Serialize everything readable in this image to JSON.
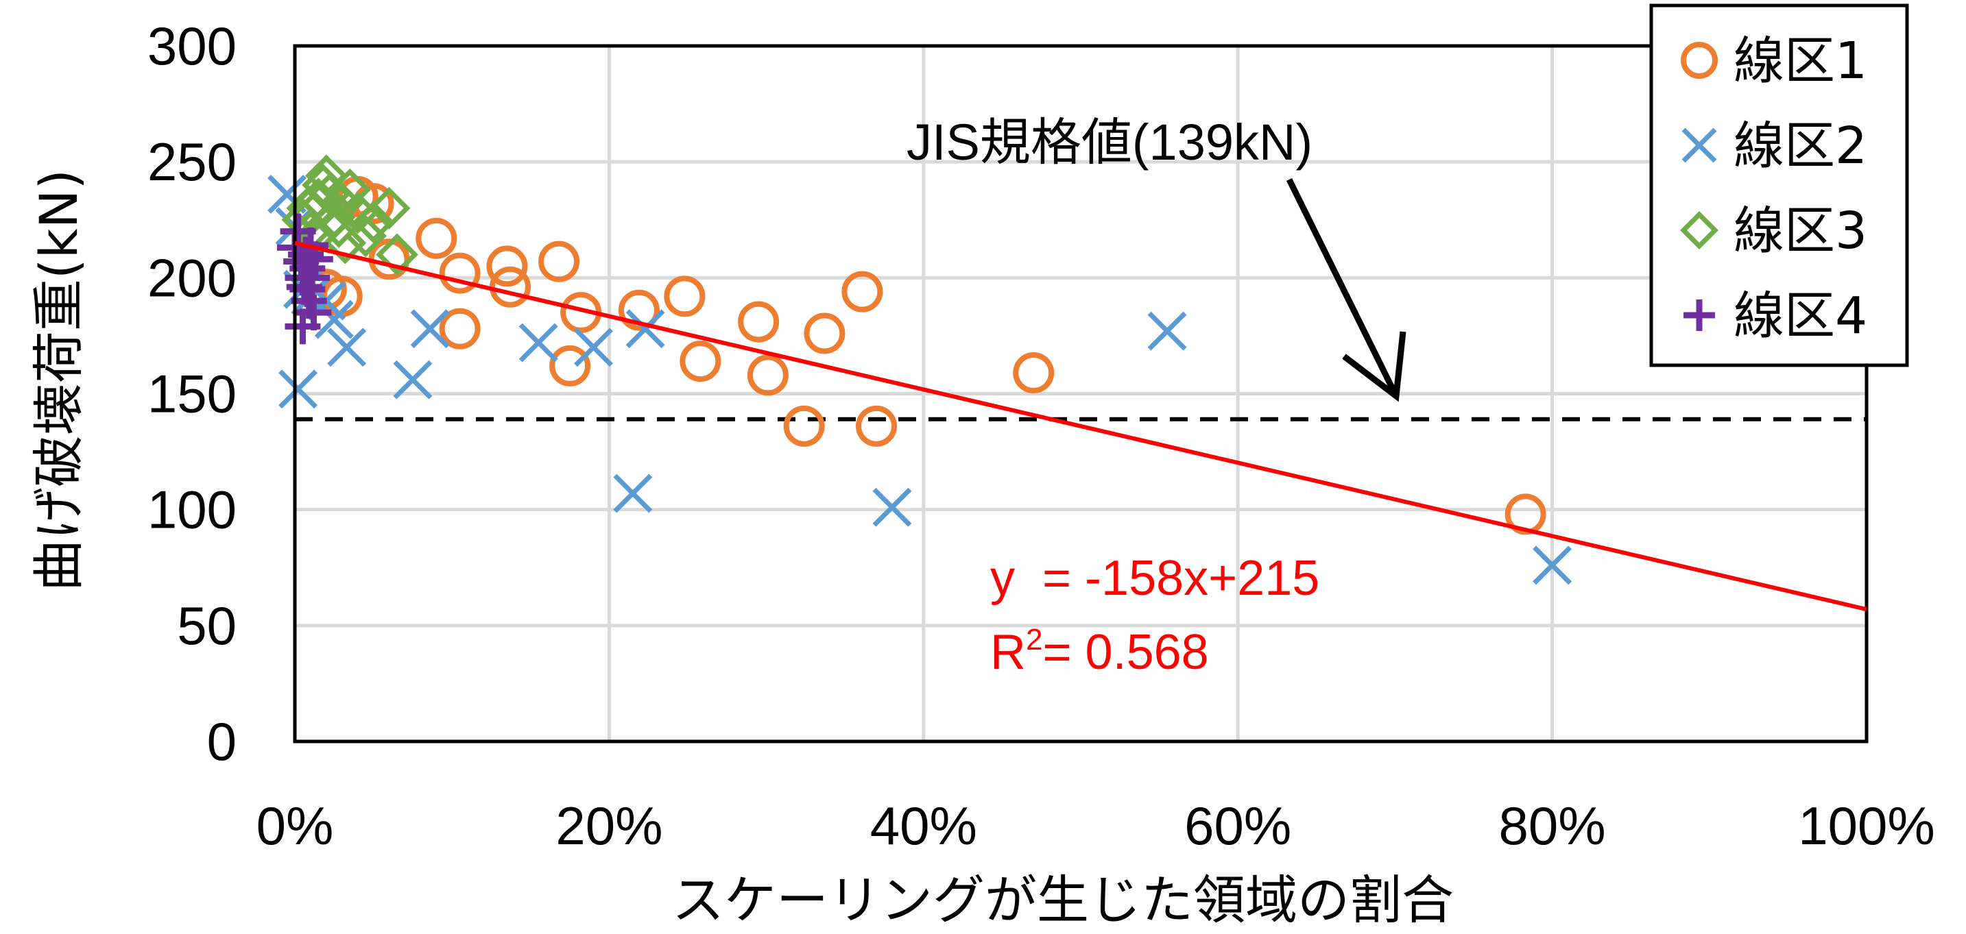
{
  "chart_data": {
    "type": "scatter",
    "xlabel": "スケーリングが生じた領域の割合",
    "ylabel": "曲げ破壊荷重(kN)",
    "xlim": [
      0,
      1
    ],
    "ylim": [
      0,
      300
    ],
    "x_ticks": [
      0,
      0.2,
      0.4,
      0.6,
      0.8,
      1.0
    ],
    "x_tick_labels": [
      "0%",
      "20%",
      "40%",
      "60%",
      "80%",
      "100%"
    ],
    "y_ticks": [
      0,
      50,
      100,
      150,
      200,
      250,
      300
    ],
    "y_tick_labels": [
      "0",
      "50",
      "100",
      "150",
      "200",
      "250",
      "300"
    ],
    "grid": true,
    "legend_position": "top-right",
    "series": [
      {
        "name": "線区1",
        "marker": "circle",
        "color": "#ED7D31",
        "points": [
          [
            0.02,
            195
          ],
          [
            0.03,
            192
          ],
          [
            0.04,
            235
          ],
          [
            0.05,
            232
          ],
          [
            0.06,
            208
          ],
          [
            0.09,
            217
          ],
          [
            0.105,
            202
          ],
          [
            0.105,
            178
          ],
          [
            0.135,
            205
          ],
          [
            0.137,
            196
          ],
          [
            0.168,
            207
          ],
          [
            0.175,
            162
          ],
          [
            0.182,
            185
          ],
          [
            0.219,
            186
          ],
          [
            0.248,
            192
          ],
          [
            0.258,
            164
          ],
          [
            0.295,
            181
          ],
          [
            0.301,
            158
          ],
          [
            0.324,
            136
          ],
          [
            0.337,
            176
          ],
          [
            0.361,
            194
          ],
          [
            0.37,
            136
          ],
          [
            0.47,
            159
          ],
          [
            0.783,
            98
          ]
        ]
      },
      {
        "name": "線区2",
        "marker": "x",
        "color": "#5B9BD5",
        "points": [
          [
            -0.005,
            236
          ],
          [
            0.0,
            222
          ],
          [
            0.002,
            152
          ],
          [
            0.005,
            195
          ],
          [
            0.01,
            192
          ],
          [
            0.02,
            190
          ],
          [
            0.025,
            182
          ],
          [
            0.033,
            170
          ],
          [
            0.075,
            156
          ],
          [
            0.086,
            178
          ],
          [
            0.155,
            172
          ],
          [
            0.19,
            170
          ],
          [
            0.215,
            107
          ],
          [
            0.223,
            178
          ],
          [
            0.38,
            101
          ],
          [
            0.555,
            177
          ],
          [
            0.8,
            76
          ]
        ]
      },
      {
        "name": "線区3",
        "marker": "diamond",
        "color": "#70AD47",
        "points": [
          [
            0.005,
            225
          ],
          [
            0.008,
            230
          ],
          [
            0.01,
            220
          ],
          [
            0.012,
            228
          ],
          [
            0.015,
            234
          ],
          [
            0.018,
            240
          ],
          [
            0.02,
            244
          ],
          [
            0.022,
            236
          ],
          [
            0.025,
            226
          ],
          [
            0.028,
            222
          ],
          [
            0.03,
            232
          ],
          [
            0.035,
            238
          ],
          [
            0.04,
            228
          ],
          [
            0.045,
            218
          ],
          [
            0.05,
            224
          ],
          [
            0.06,
            230
          ],
          [
            0.065,
            210
          ],
          [
            0.013,
            218
          ],
          [
            0.032,
            215
          ]
        ]
      },
      {
        "name": "線区4",
        "marker": "plus",
        "color": "#7030A0",
        "points": [
          [
            0.0,
            213
          ],
          [
            0.002,
            220
          ],
          [
            0.004,
            207
          ],
          [
            0.005,
            200
          ],
          [
            0.006,
            196
          ],
          [
            0.007,
            210
          ],
          [
            0.008,
            204
          ],
          [
            0.009,
            190
          ],
          [
            0.01,
            214
          ],
          [
            0.011,
            200
          ],
          [
            0.012,
            185
          ],
          [
            0.013,
            208
          ],
          [
            0.005,
            179
          ],
          [
            0.008,
            195
          ]
        ]
      }
    ],
    "trendline": {
      "slope": -158,
      "intercept": 215,
      "color": "#FF0000",
      "equation_label": "y  = -158x+215",
      "r2_prefix": "R",
      "r2_sup": "2",
      "r2_suffix": "= 0.568"
    },
    "reference_line": {
      "y": 139,
      "style": "dashed",
      "color": "#000000",
      "label": "JIS規格値(139kN)"
    }
  }
}
